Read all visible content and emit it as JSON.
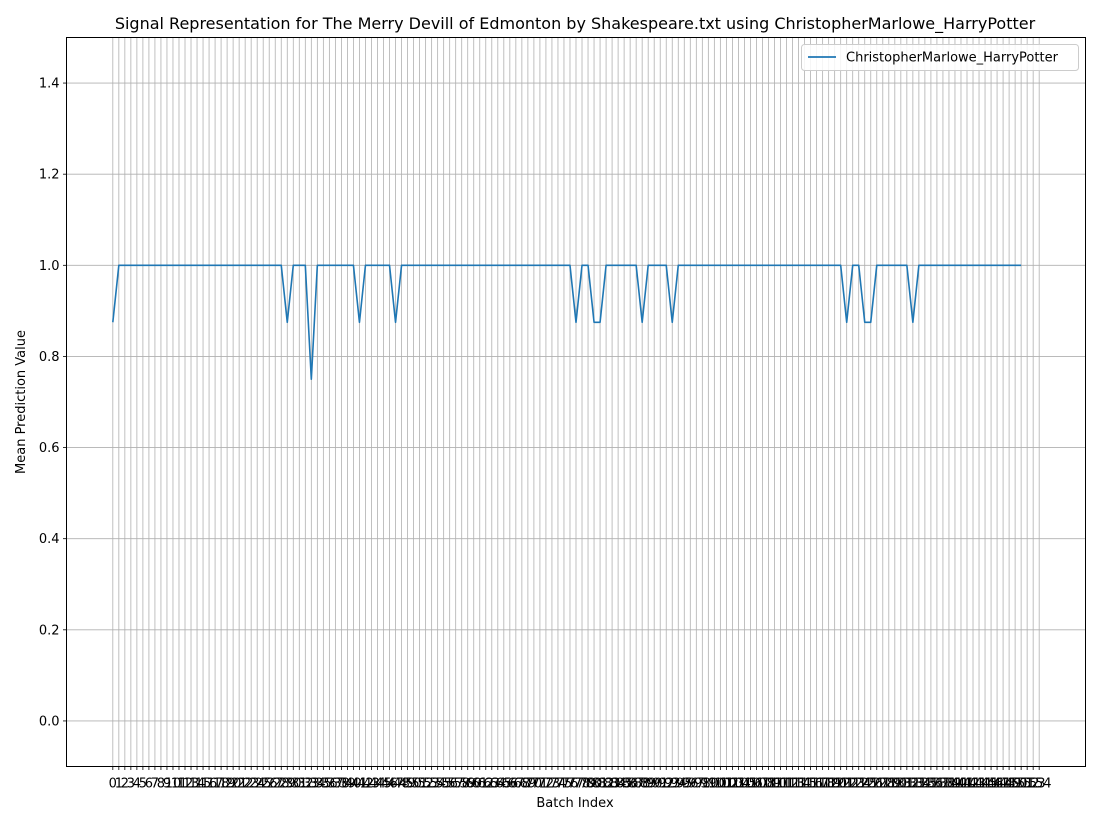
{
  "chart_data": {
    "type": "line",
    "title": "Signal Representation for The Merry Devill of Edmonton by Shakespeare.txt using ChristopherMarlowe_HarryPotter",
    "xlabel": "Batch Index",
    "ylabel": "Mean Prediction Value",
    "xlim": [
      -7.7,
      161.7
    ],
    "ylim": [
      -0.1,
      1.5
    ],
    "yticks": [
      0.0,
      0.2,
      0.4,
      0.6,
      0.8,
      1.0,
      1.2,
      1.4
    ],
    "ytick_labels": [
      "0.0",
      "0.2",
      "0.4",
      "0.6",
      "0.8",
      "1.0",
      "1.2",
      "1.4"
    ],
    "x_start": 0,
    "x_end": 154,
    "grid": true,
    "legend_position": "top-right",
    "color": "#1f77b4",
    "series": [
      {
        "name": "ChristopherMarlowe_HarryPotter",
        "values": [
          0.875,
          1,
          1,
          1,
          1,
          1,
          1,
          1,
          1,
          1,
          1,
          1,
          1,
          1,
          1,
          1,
          1,
          1,
          1,
          1,
          1,
          1,
          1,
          1,
          1,
          1,
          1,
          1,
          1,
          0.875,
          1,
          1,
          1,
          0.75,
          1,
          1,
          1,
          1,
          1,
          1,
          1,
          0.875,
          1,
          1,
          1,
          1,
          1,
          0.875,
          1,
          1,
          1,
          1,
          1,
          1,
          1,
          1,
          1,
          1,
          1,
          1,
          1,
          1,
          1,
          1,
          1,
          1,
          1,
          1,
          1,
          1,
          1,
          1,
          1,
          1,
          1,
          1,
          1,
          0.875,
          1,
          1,
          0.875,
          0.875,
          1,
          1,
          1,
          1,
          1,
          1,
          0.875,
          1,
          1,
          1,
          1,
          0.875,
          1,
          1,
          1,
          1,
          1,
          1,
          1,
          1,
          1,
          1,
          1,
          1,
          1,
          1,
          1,
          1,
          1,
          1,
          1,
          1,
          1,
          1,
          1,
          1,
          1,
          1,
          1,
          1,
          0.875,
          1,
          1,
          0.875,
          0.875,
          1,
          1,
          1,
          1,
          1,
          1,
          0.875,
          1,
          1,
          1,
          1,
          1,
          1,
          1,
          1,
          1,
          1,
          1,
          1,
          1,
          1,
          1,
          1,
          1,
          1
        ]
      }
    ]
  }
}
